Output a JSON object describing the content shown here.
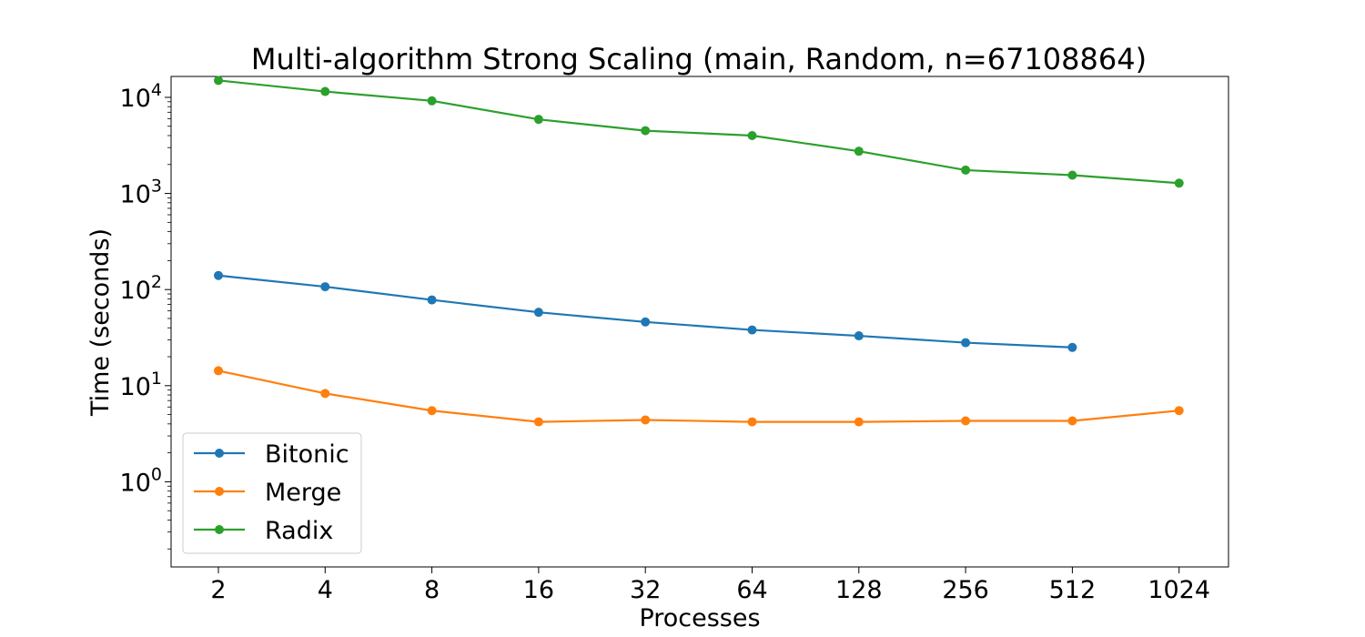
{
  "chart_data": {
    "type": "line",
    "title": "Multi-algorithm Strong Scaling (main, Random, n=67108864)",
    "xlabel": "Processes",
    "ylabel": "Time (seconds)",
    "x_scale": "log2",
    "y_scale": "log10",
    "categories": [
      "2",
      "4",
      "8",
      "16",
      "32",
      "64",
      "128",
      "256",
      "512",
      "1024"
    ],
    "ylim": [
      0.13,
      16500
    ],
    "y_ticks": [
      {
        "value": 1,
        "base": "10",
        "exp": "0"
      },
      {
        "value": 10,
        "base": "10",
        "exp": "1"
      },
      {
        "value": 100,
        "base": "10",
        "exp": "2"
      },
      {
        "value": 1000,
        "base": "10",
        "exp": "3"
      },
      {
        "value": 10000,
        "base": "10",
        "exp": "4"
      }
    ],
    "grid": false,
    "legend_position": "lower-left",
    "series": [
      {
        "name": "Bitonic",
        "color": "#1f77b4",
        "marker": "circle",
        "values": [
          140,
          107,
          78,
          58,
          46,
          38,
          33,
          28,
          25,
          null
        ]
      },
      {
        "name": "Merge",
        "color": "#ff7f0e",
        "marker": "circle",
        "values": [
          14.3,
          8.3,
          5.5,
          4.2,
          4.4,
          4.2,
          4.2,
          4.3,
          4.3,
          5.5
        ]
      },
      {
        "name": "Radix",
        "color": "#2ca02c",
        "marker": "circle",
        "values": [
          15000,
          11500,
          9200,
          5900,
          4500,
          4000,
          2750,
          1750,
          1550,
          1280
        ]
      }
    ]
  }
}
